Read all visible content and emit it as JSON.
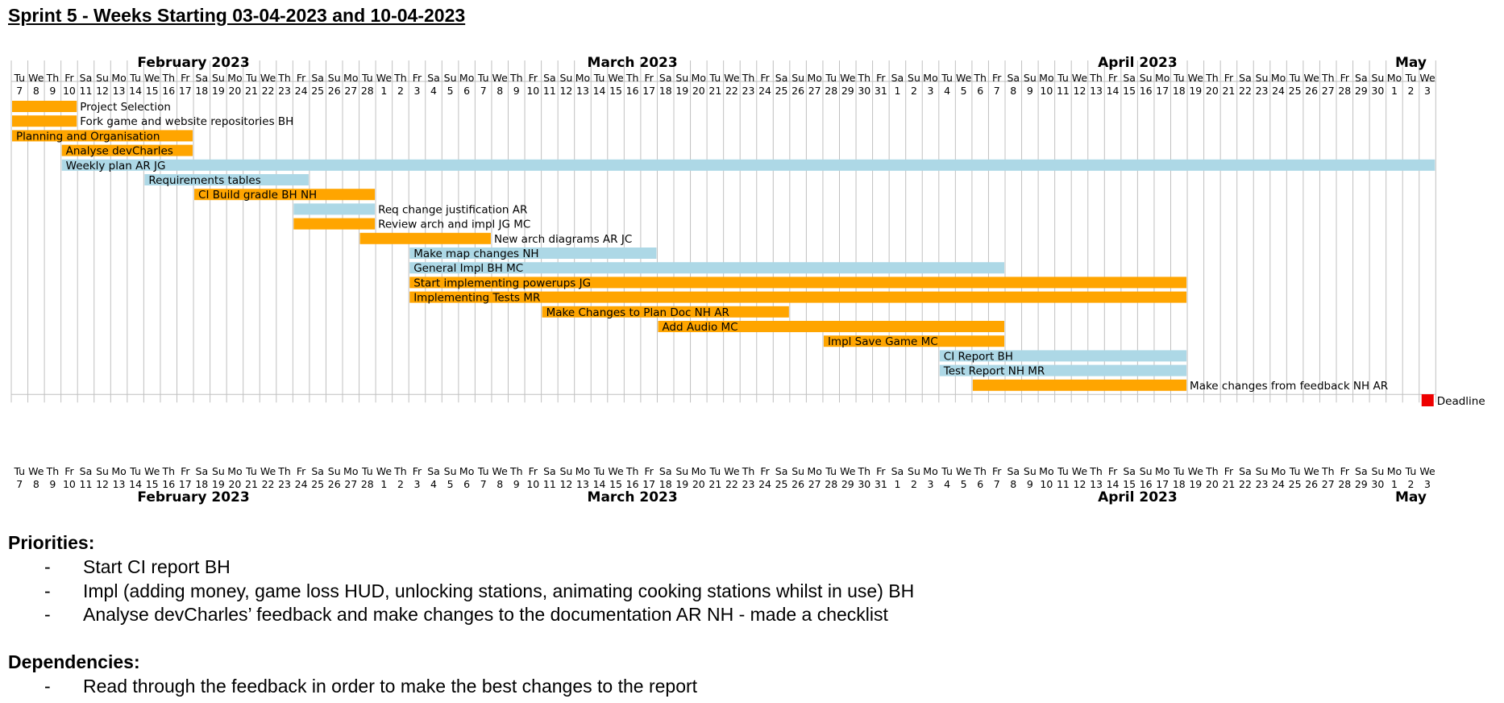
{
  "title": "Sprint 5 - Weeks Starting 03-04-2023 and 10-04-2023",
  "gantt": {
    "months": [
      {
        "label": "February 2023",
        "start": 0,
        "end": 22
      },
      {
        "label": "March 2023",
        "start": 22,
        "end": 53
      },
      {
        "label": "April 2023",
        "start": 53,
        "end": 83
      },
      {
        "label": "May",
        "start": 83,
        "end": 86
      }
    ],
    "days": [
      {
        "w": "Tu",
        "d": "7"
      },
      {
        "w": "We",
        "d": "8"
      },
      {
        "w": "Th",
        "d": "9"
      },
      {
        "w": "Fr",
        "d": "10"
      },
      {
        "w": "Sa",
        "d": "11"
      },
      {
        "w": "Su",
        "d": "12"
      },
      {
        "w": "Mo",
        "d": "13"
      },
      {
        "w": "Tu",
        "d": "14"
      },
      {
        "w": "We",
        "d": "15"
      },
      {
        "w": "Th",
        "d": "16"
      },
      {
        "w": "Fr",
        "d": "17"
      },
      {
        "w": "Sa",
        "d": "18"
      },
      {
        "w": "Su",
        "d": "19"
      },
      {
        "w": "Mo",
        "d": "20"
      },
      {
        "w": "Tu",
        "d": "21"
      },
      {
        "w": "We",
        "d": "22"
      },
      {
        "w": "Th",
        "d": "23"
      },
      {
        "w": "Fr",
        "d": "24"
      },
      {
        "w": "Sa",
        "d": "25"
      },
      {
        "w": "Su",
        "d": "26"
      },
      {
        "w": "Mo",
        "d": "27"
      },
      {
        "w": "Tu",
        "d": "28"
      },
      {
        "w": "We",
        "d": "1"
      },
      {
        "w": "Th",
        "d": "2"
      },
      {
        "w": "Fr",
        "d": "3"
      },
      {
        "w": "Sa",
        "d": "4"
      },
      {
        "w": "Su",
        "d": "5"
      },
      {
        "w": "Mo",
        "d": "6"
      },
      {
        "w": "Tu",
        "d": "7"
      },
      {
        "w": "We",
        "d": "8"
      },
      {
        "w": "Th",
        "d": "9"
      },
      {
        "w": "Fr",
        "d": "10"
      },
      {
        "w": "Sa",
        "d": "11"
      },
      {
        "w": "Su",
        "d": "12"
      },
      {
        "w": "Mo",
        "d": "13"
      },
      {
        "w": "Tu",
        "d": "14"
      },
      {
        "w": "We",
        "d": "15"
      },
      {
        "w": "Th",
        "d": "16"
      },
      {
        "w": "Fr",
        "d": "17"
      },
      {
        "w": "Sa",
        "d": "18"
      },
      {
        "w": "Su",
        "d": "19"
      },
      {
        "w": "Mo",
        "d": "20"
      },
      {
        "w": "Tu",
        "d": "21"
      },
      {
        "w": "We",
        "d": "22"
      },
      {
        "w": "Th",
        "d": "23"
      },
      {
        "w": "Fr",
        "d": "24"
      },
      {
        "w": "Sa",
        "d": "25"
      },
      {
        "w": "Su",
        "d": "26"
      },
      {
        "w": "Mo",
        "d": "27"
      },
      {
        "w": "Tu",
        "d": "28"
      },
      {
        "w": "We",
        "d": "29"
      },
      {
        "w": "Th",
        "d": "30"
      },
      {
        "w": "Fr",
        "d": "31"
      },
      {
        "w": "Sa",
        "d": "1"
      },
      {
        "w": "Su",
        "d": "2"
      },
      {
        "w": "Mo",
        "d": "3"
      },
      {
        "w": "Tu",
        "d": "4"
      },
      {
        "w": "We",
        "d": "5"
      },
      {
        "w": "Th",
        "d": "6"
      },
      {
        "w": "Fr",
        "d": "7"
      },
      {
        "w": "Sa",
        "d": "8"
      },
      {
        "w": "Su",
        "d": "9"
      },
      {
        "w": "Mo",
        "d": "10"
      },
      {
        "w": "Tu",
        "d": "11"
      },
      {
        "w": "We",
        "d": "12"
      },
      {
        "w": "Th",
        "d": "13"
      },
      {
        "w": "Fr",
        "d": "14"
      },
      {
        "w": "Sa",
        "d": "15"
      },
      {
        "w": "Su",
        "d": "16"
      },
      {
        "w": "Mo",
        "d": "17"
      },
      {
        "w": "Tu",
        "d": "18"
      },
      {
        "w": "We",
        "d": "19"
      },
      {
        "w": "Th",
        "d": "20"
      },
      {
        "w": "Fr",
        "d": "21"
      },
      {
        "w": "Sa",
        "d": "22"
      },
      {
        "w": "Su",
        "d": "23"
      },
      {
        "w": "Mo",
        "d": "24"
      },
      {
        "w": "Tu",
        "d": "25"
      },
      {
        "w": "We",
        "d": "26"
      },
      {
        "w": "Th",
        "d": "27"
      },
      {
        "w": "Fr",
        "d": "28"
      },
      {
        "w": "Sa",
        "d": "29"
      },
      {
        "w": "Su",
        "d": "30"
      },
      {
        "w": "Mo",
        "d": "1"
      },
      {
        "w": "Tu",
        "d": "2"
      },
      {
        "w": "We",
        "d": "3"
      }
    ],
    "colors": {
      "orange": "#FFA500",
      "blue": "#ADD8E6",
      "red": "#EE0000",
      "grid": "#C0C0C0"
    },
    "tasks": [
      {
        "label": "Project Selection",
        "start_date": "2023-02-07",
        "end_date": "2023-02-10",
        "color": "orange",
        "label_inside": false
      },
      {
        "label": "Fork game and website repositories BH",
        "start_date": "2023-02-07",
        "end_date": "2023-02-10",
        "color": "orange",
        "label_inside": false
      },
      {
        "label": "Planning and Organisation",
        "start_date": "2023-02-07",
        "end_date": "2023-02-17",
        "color": "orange",
        "label_inside": true
      },
      {
        "label": "Analyse devCharles",
        "start_date": "2023-02-10",
        "end_date": "2023-02-17",
        "color": "orange",
        "label_inside": true
      },
      {
        "label": "Weekly plan AR JG",
        "start_date": "2023-02-10",
        "end_date": "2023-05-03",
        "color": "blue",
        "label_inside": true
      },
      {
        "label": "Requirements tables",
        "start_date": "2023-02-15",
        "end_date": "2023-02-24",
        "color": "blue",
        "label_inside": true
      },
      {
        "label": "CI Build gradle BH NH",
        "start_date": "2023-02-18",
        "end_date": "2023-02-28",
        "color": "orange",
        "label_inside": true
      },
      {
        "label": "Req change justification AR",
        "start_date": "2023-02-24",
        "end_date": "2023-02-28",
        "color": "blue",
        "label_inside": false
      },
      {
        "label": "Review arch and impl JG MC",
        "start_date": "2023-02-24",
        "end_date": "2023-02-28",
        "color": "orange",
        "label_inside": false
      },
      {
        "label": "New arch diagrams AR JC",
        "start_date": "2023-02-28",
        "end_date": "2023-03-07",
        "color": "orange",
        "label_inside": false
      },
      {
        "label": "Make map changes NH",
        "start_date": "2023-03-03",
        "end_date": "2023-03-17",
        "color": "blue",
        "label_inside": true
      },
      {
        "label": "General Impl BH MC",
        "start_date": "2023-03-03",
        "end_date": "2023-04-07",
        "color": "blue",
        "label_inside": true
      },
      {
        "label": "Start implementing powerups JG",
        "start_date": "2023-03-03",
        "end_date": "2023-04-18",
        "color": "orange",
        "label_inside": true
      },
      {
        "label": "Implementing Tests MR",
        "start_date": "2023-03-03",
        "end_date": "2023-04-18",
        "color": "orange",
        "label_inside": true
      },
      {
        "label": "Make Changes to Plan Doc NH AR",
        "start_date": "2023-03-11",
        "end_date": "2023-03-25",
        "color": "orange",
        "label_inside": true
      },
      {
        "label": "Add Audio MC",
        "start_date": "2023-03-18",
        "end_date": "2023-04-07",
        "color": "orange",
        "label_inside": true
      },
      {
        "label": "Impl Save Game MC",
        "start_date": "2023-03-28",
        "end_date": "2023-04-07",
        "color": "orange",
        "label_inside": true
      },
      {
        "label": "CI Report BH",
        "start_date": "2023-04-04",
        "end_date": "2023-04-18",
        "color": "blue",
        "label_inside": true
      },
      {
        "label": "Test Report NH MR",
        "start_date": "2023-04-04",
        "end_date": "2023-04-18",
        "color": "blue",
        "label_inside": true
      },
      {
        "label": "Make changes from feedback NH AR",
        "start_date": "2023-04-06",
        "end_date": "2023-04-18",
        "color": "orange",
        "label_inside": false
      }
    ],
    "milestone": {
      "label": "Deadline",
      "date": "2023-05-03",
      "color": "red"
    }
  },
  "priorities": {
    "heading": "Priorities:",
    "items": [
      {
        "bullet": "-",
        "text": "Start CI report BH"
      },
      {
        "bullet": "-",
        "text": "Impl (adding money, game loss HUD, unlocking stations, animating cooking stations whilst in use) BH"
      },
      {
        "bullet": "-",
        "text": "Analyse devCharles’ feedback and make changes to the documentation AR NH - made a checklist"
      }
    ]
  },
  "dependencies": {
    "heading": "Dependencies:",
    "items": [
      {
        "bullet": "-",
        "text": "Read through the feedback in order to make the best changes to the report"
      }
    ]
  }
}
